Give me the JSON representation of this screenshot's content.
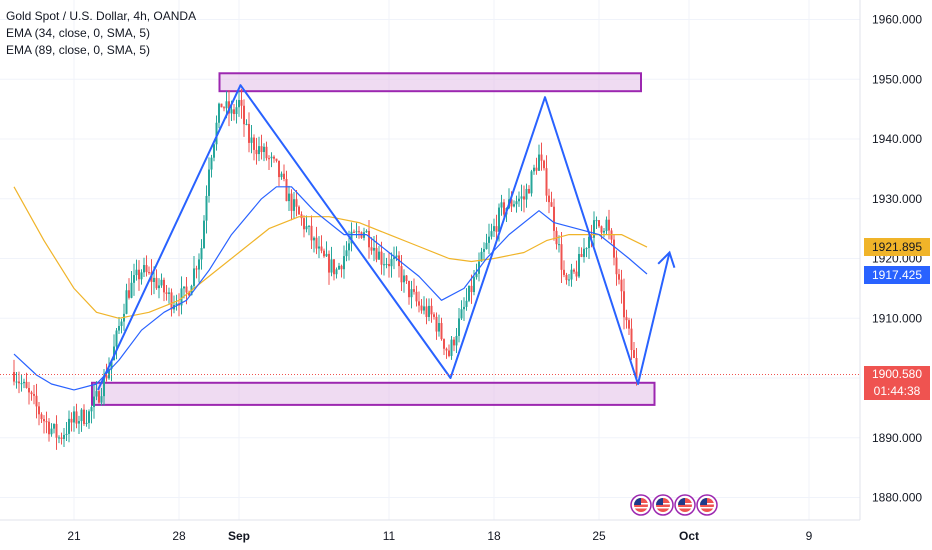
{
  "legend": {
    "line1": "Gold Spot / U.S. Dollar, 4h, OANDA",
    "line2": "EMA (34, close, 0, SMA, 5)",
    "line3": "EMA (89, close, 0, SMA, 5)"
  },
  "colors": {
    "up": "#26a69a",
    "down": "#ef5350",
    "ema34": "#2962ff",
    "ema89": "#f0b429",
    "zone_border": "#9c27b0",
    "zone_fill": "#e1bee7",
    "pattern": "#2962ff",
    "price_line": "#ef5350"
  },
  "badges": {
    "ema89_value": "1921.895",
    "ema34_value": "1917.425",
    "last_price": "1900.580",
    "countdown": "01:44:38"
  },
  "chart_data": {
    "type": "candlestick",
    "symbol": "Gold Spot / U.S. Dollar",
    "interval": "4h",
    "y_axis": {
      "ticks": [
        "1960.000",
        "1950.000",
        "1940.000",
        "1930.000",
        "1920.000",
        "1910.000",
        "1900.000",
        "1890.000",
        "1880.000"
      ],
      "range": [
        1877,
        1963
      ]
    },
    "x_axis": {
      "ticks": [
        {
          "label": "21",
          "day": 21,
          "bold": false
        },
        {
          "label": "28",
          "day": 28,
          "bold": false
        },
        {
          "label": "Sep",
          "day": 32,
          "bold": true
        },
        {
          "label": "11",
          "day": 42,
          "bold": false
        },
        {
          "label": "18",
          "day": 49,
          "bold": false
        },
        {
          "label": "25",
          "day": 56,
          "bold": false
        },
        {
          "label": "Oct",
          "day": 62,
          "bold": true
        },
        {
          "label": "9",
          "day": 70,
          "bold": false
        }
      ]
    },
    "price_path": [
      [
        17.0,
        1901
      ],
      [
        18.0,
        1897
      ],
      [
        19.0,
        1893
      ],
      [
        20.0,
        1890
      ],
      [
        21.0,
        1893
      ],
      [
        22.0,
        1894
      ],
      [
        22.6,
        1897
      ],
      [
        23.5,
        1903
      ],
      [
        24.5,
        1914
      ],
      [
        25.5,
        1918
      ],
      [
        26.5,
        1916
      ],
      [
        27.5,
        1913
      ],
      [
        28.5,
        1914
      ],
      [
        29.5,
        1922
      ],
      [
        30.0,
        1936
      ],
      [
        30.8,
        1946
      ],
      [
        31.5,
        1944
      ],
      [
        32.0,
        1946
      ],
      [
        32.6,
        1940
      ],
      [
        33.5,
        1938
      ],
      [
        34.5,
        1935
      ],
      [
        35.3,
        1930
      ],
      [
        36.5,
        1925
      ],
      [
        37.5,
        1920
      ],
      [
        38.5,
        1918
      ],
      [
        39.5,
        1923
      ],
      [
        40.3,
        1925
      ],
      [
        41.5,
        1920
      ],
      [
        42.5,
        1919
      ],
      [
        43.2,
        1915
      ],
      [
        44.0,
        1912
      ],
      [
        45.0,
        1910
      ],
      [
        46.0,
        1904
      ],
      [
        46.5,
        1908
      ],
      [
        47.5,
        1915
      ],
      [
        48.5,
        1922
      ],
      [
        49.5,
        1928
      ],
      [
        50.5,
        1930
      ],
      [
        51.0,
        1930
      ],
      [
        52.0,
        1937
      ],
      [
        52.6,
        1931
      ],
      [
        53.3,
        1922
      ],
      [
        53.8,
        1915
      ],
      [
        54.5,
        1918
      ],
      [
        55.5,
        1925
      ],
      [
        56.5,
        1926
      ],
      [
        57.0,
        1920
      ],
      [
        57.5,
        1913
      ],
      [
        58.0,
        1907
      ],
      [
        58.5,
        1900.6
      ]
    ],
    "ema34": [
      [
        17.0,
        1904
      ],
      [
        18.5,
        1900.5
      ],
      [
        19.5,
        1899
      ],
      [
        21.0,
        1898
      ],
      [
        22.5,
        1899
      ],
      [
        24.0,
        1903
      ],
      [
        25.5,
        1908
      ],
      [
        27.0,
        1911
      ],
      [
        28.5,
        1913
      ],
      [
        30.0,
        1918
      ],
      [
        31.5,
        1924
      ],
      [
        33.5,
        1930
      ],
      [
        34.5,
        1932
      ],
      [
        35.5,
        1932
      ],
      [
        37.0,
        1928
      ],
      [
        39.0,
        1924
      ],
      [
        40.5,
        1924
      ],
      [
        42.0,
        1921
      ],
      [
        44.0,
        1917
      ],
      [
        45.5,
        1913
      ],
      [
        47.0,
        1915
      ],
      [
        48.5,
        1920
      ],
      [
        50.0,
        1924
      ],
      [
        52.0,
        1928
      ],
      [
        53.0,
        1926
      ],
      [
        54.5,
        1925
      ],
      [
        56.0,
        1924
      ],
      [
        57.0,
        1922
      ],
      [
        58.0,
        1920
      ],
      [
        59.2,
        1917.4
      ]
    ],
    "ema89": [
      [
        17.0,
        1932
      ],
      [
        19.0,
        1923
      ],
      [
        21.0,
        1915
      ],
      [
        22.5,
        1911
      ],
      [
        24.0,
        1910
      ],
      [
        26.0,
        1911
      ],
      [
        28.0,
        1913
      ],
      [
        30.0,
        1917
      ],
      [
        32.0,
        1921
      ],
      [
        34.0,
        1925
      ],
      [
        36.0,
        1927
      ],
      [
        38.0,
        1927
      ],
      [
        40.0,
        1926
      ],
      [
        42.0,
        1924
      ],
      [
        44.0,
        1922
      ],
      [
        46.0,
        1920
      ],
      [
        47.5,
        1919.5
      ],
      [
        49.0,
        1920
      ],
      [
        51.0,
        1921
      ],
      [
        52.5,
        1923
      ],
      [
        54.0,
        1924
      ],
      [
        56.0,
        1924
      ],
      [
        57.5,
        1924
      ],
      [
        59.2,
        1921.9
      ]
    ],
    "zones": [
      {
        "name": "resistance",
        "x0": 30.7,
        "x1": 58.8,
        "y_high": 1951,
        "y_low": 1948
      },
      {
        "name": "support",
        "x0": 22.2,
        "x1": 59.7,
        "y_high": 1899.2,
        "y_low": 1895.5
      }
    ],
    "pattern_line": [
      [
        22.6,
        1898
      ],
      [
        32.1,
        1949
      ],
      [
        46.1,
        1900
      ],
      [
        52.4,
        1947
      ],
      [
        58.6,
        1899
      ],
      [
        60.7,
        1921
      ]
    ],
    "current_price": 1900.58,
    "event_markers": 4
  }
}
